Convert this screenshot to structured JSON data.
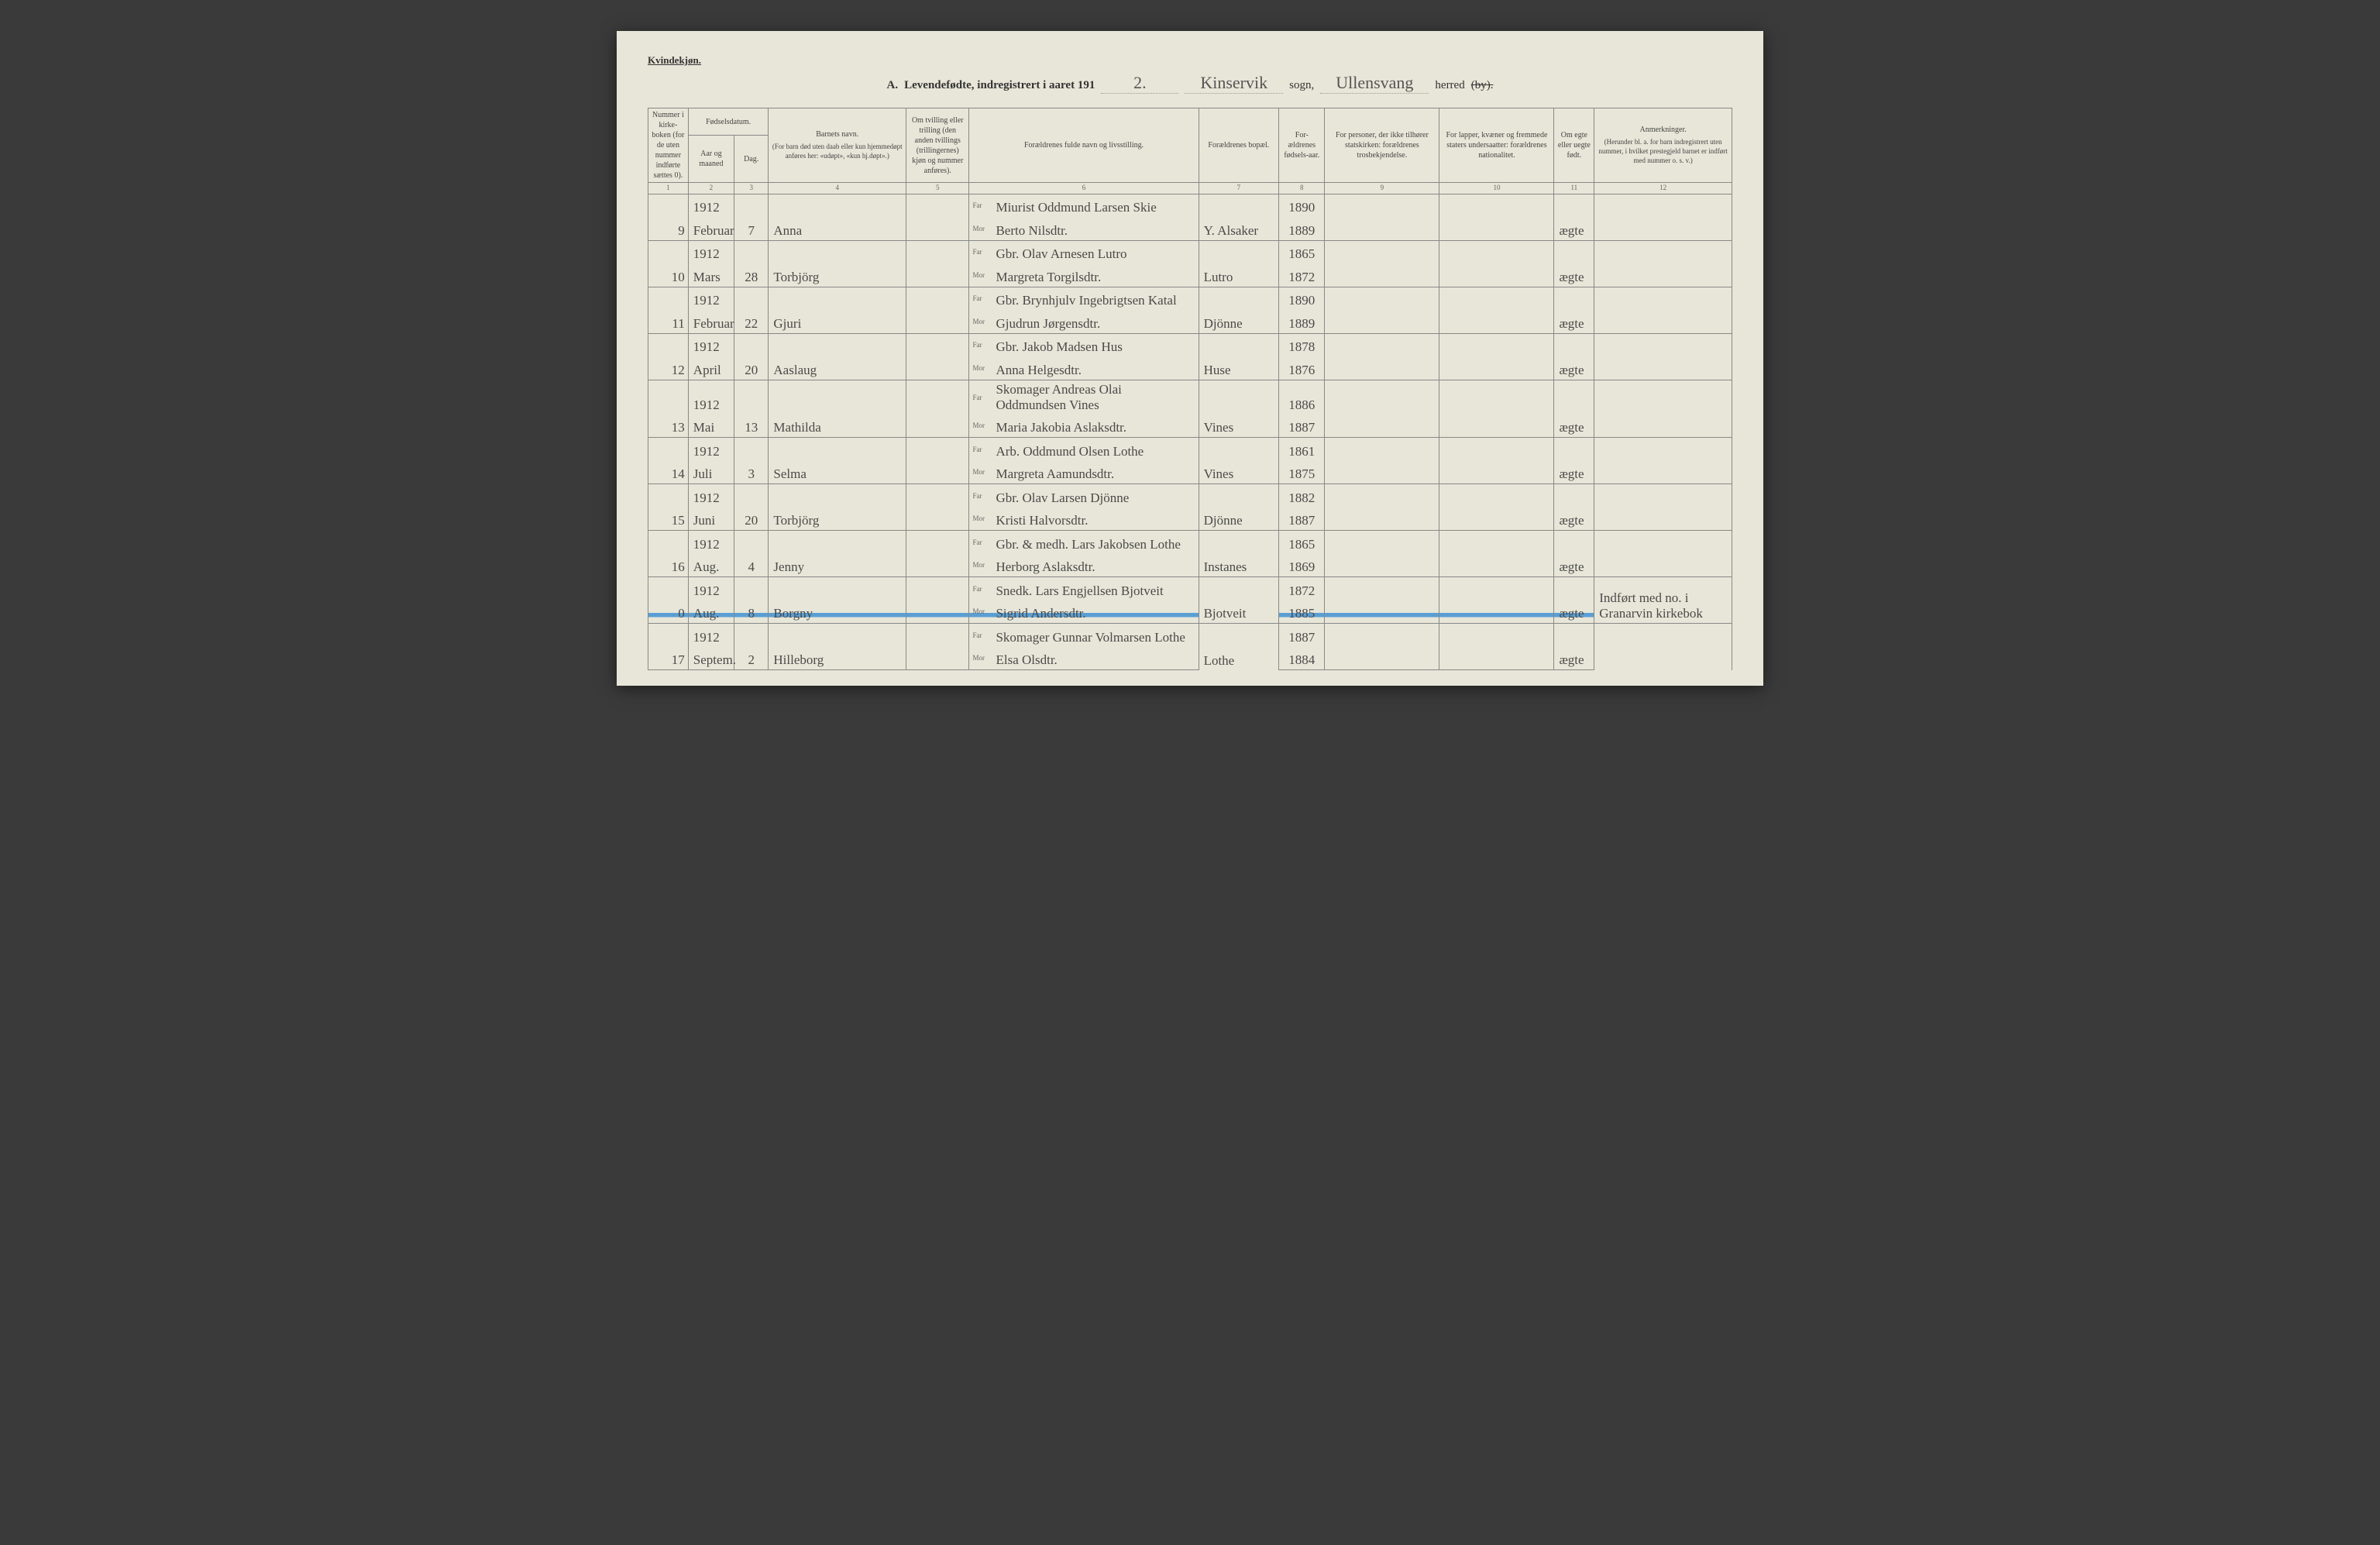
{
  "header": {
    "gender_label": "Kvindekjøn.",
    "title_prefix": "A.",
    "title_main": "Levendefødte, indregistrert i aaret 191",
    "year_suffix": "2.",
    "parish_script": "Kinservik",
    "parish_label": "sogn,",
    "district_script": "Ullensvang",
    "district_label": "herred",
    "district_struck": "(by)."
  },
  "columns": {
    "c1": "Nummer i kirke-boken (for de uten nummer indførte sættes 0).",
    "c2_top": "Fødselsdatum.",
    "c2a": "Aar og maaned",
    "c2b": "Dag.",
    "c4_top": "Barnets navn.",
    "c4_sub": "(For barn død uten daab eller kun hjemmedøpt anføres her: «udøpt», «kun hj.døpt».)",
    "c5": "Om tvilling eller trilling (den anden tvillings (trillingernes) kjøn og nummer anføres).",
    "c6": "Forældrenes fulde navn og livsstilling.",
    "c7": "Forældrenes bopæl.",
    "c8": "For-ældrenes fødsels-aar.",
    "c9": "For personer, der ikke tilhører statskirken: forældrenes trosbekjendelse.",
    "c10": "For lapper, kvæner og fremmede staters undersaatter: forældrenes nationalitet.",
    "c11": "Om egte eller uegte født.",
    "c12_top": "Anmerkninger.",
    "c12_sub": "(Herunder bl. a. for barn indregistrert uten nummer, i hvilket prestegjeld barnet er indført med nummer o. s. v.)",
    "nums": [
      "1",
      "2",
      "3",
      "4",
      "5",
      "6",
      "7",
      "8",
      "9",
      "10",
      "11",
      "12"
    ]
  },
  "labels": {
    "far": "Far",
    "mor": "Mor"
  },
  "rows": [
    {
      "num": "9",
      "year": "1912",
      "month": "Februar",
      "day": "7",
      "name": "Anna",
      "far": "Miurist Oddmund Larsen Skie",
      "mor": "Berto Nilsdtr.",
      "place": "Y. Alsaker",
      "fy": "1890",
      "my": "1889",
      "legit": "ægte",
      "note": ""
    },
    {
      "num": "10",
      "year": "1912",
      "month": "Mars",
      "day": "28",
      "name": "Torbjörg",
      "far": "Gbr. Olav Arnesen Lutro",
      "mor": "Margreta Torgilsdtr.",
      "place": "Lutro",
      "fy": "1865",
      "my": "1872",
      "legit": "ægte",
      "note": ""
    },
    {
      "num": "11",
      "year": "1912",
      "month": "Februar",
      "day": "22",
      "name": "Gjuri",
      "far": "Gbr. Brynhjulv Ingebrigtsen Katal",
      "mor": "Gjudrun Jørgensdtr.",
      "place": "Djönne",
      "fy": "1890",
      "my": "1889",
      "legit": "ægte",
      "note": ""
    },
    {
      "num": "12",
      "year": "1912",
      "month": "April",
      "day": "20",
      "name": "Aaslaug",
      "far": "Gbr. Jakob Madsen Hus",
      "mor": "Anna Helgesdtr.",
      "place": "Huse",
      "fy": "1878",
      "my": "1876",
      "legit": "ægte",
      "note": ""
    },
    {
      "num": "13",
      "year": "1912",
      "month": "Mai",
      "day": "13",
      "name": "Mathilda",
      "far": "Skomager Andreas Olai Oddmundsen Vines",
      "mor": "Maria Jakobia Aslaksdtr.",
      "place": "Vines",
      "fy": "1886",
      "my": "1887",
      "legit": "ægte",
      "note": ""
    },
    {
      "num": "14",
      "year": "1912",
      "month": "Juli",
      "day": "3",
      "name": "Selma",
      "far": "Arb. Oddmund Olsen Lothe",
      "mor": "Margreta Aamundsdtr.",
      "place": "Vines",
      "fy": "1861",
      "my": "1875",
      "legit": "ægte",
      "note": ""
    },
    {
      "num": "15",
      "year": "1912",
      "month": "Juni",
      "day": "20",
      "name": "Torbjörg",
      "far": "Gbr. Olav Larsen Djönne",
      "mor": "Kristi Halvorsdtr.",
      "place": "Djönne",
      "fy": "1882",
      "my": "1887",
      "legit": "ægte",
      "note": ""
    },
    {
      "num": "16",
      "year": "1912",
      "month": "Aug.",
      "day": "4",
      "name": "Jenny",
      "far": "Gbr. & medh. Lars Jakobsen Lothe",
      "mor": "Herborg Aslaksdtr.",
      "place": "Instanes",
      "fy": "1865",
      "my": "1869",
      "legit": "ægte",
      "note": ""
    },
    {
      "num": "0",
      "year": "1912",
      "month": "Aug.",
      "day": "8",
      "name": "Borgny",
      "far": "Snedk. Lars Engjellsen Bjotveit",
      "mor": "Sigrid Andersdtr.",
      "place": "Bjotveit",
      "fy": "1872",
      "my": "1885",
      "legit": "ægte",
      "note": "Indført med no. i Granarvin kirkebok",
      "highlight": true
    },
    {
      "num": "17",
      "year": "1912",
      "month": "Septem.",
      "day": "2",
      "name": "Hilleborg",
      "far": "Skomager Gunnar Volmarsen Lothe",
      "mor": "Elsa Olsdtr.",
      "place": "Lothe",
      "fy": "1887",
      "my": "1884",
      "legit": "ægte",
      "note": ""
    }
  ]
}
